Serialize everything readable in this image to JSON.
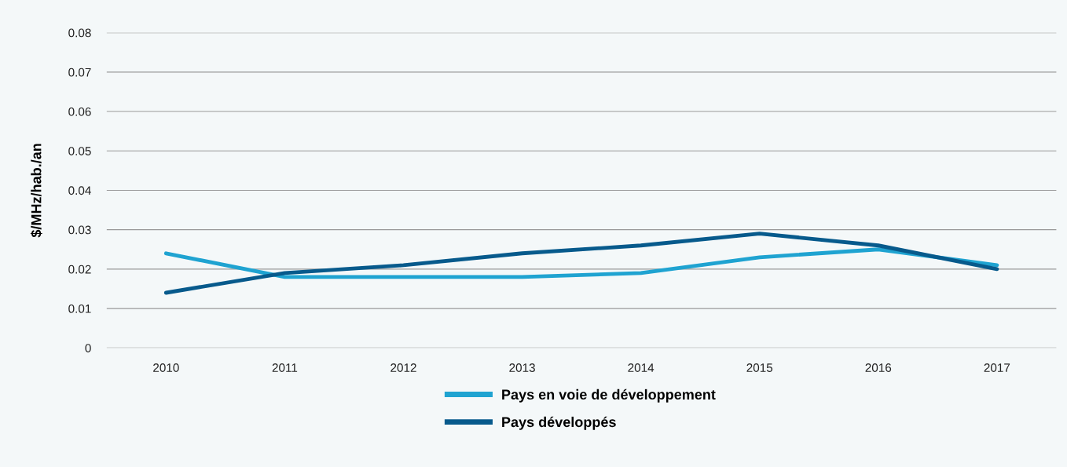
{
  "chart_data": {
    "type": "line",
    "ylabel": "$/MHz/hab./an",
    "categories": [
      "2010",
      "2011",
      "2012",
      "2013",
      "2014",
      "2015",
      "2016",
      "2017"
    ],
    "series": [
      {
        "name": "Pays en voie de développement",
        "color": "#1fa3d1",
        "values": [
          0.024,
          0.018,
          0.018,
          0.018,
          0.019,
          0.023,
          0.025,
          0.021
        ]
      },
      {
        "name": "Pays développés",
        "color": "#075a8c",
        "values": [
          0.014,
          0.019,
          0.021,
          0.024,
          0.026,
          0.029,
          0.026,
          0.02
        ]
      }
    ],
    "ylim": [
      0,
      0.08
    ],
    "yticks": [
      0,
      0.01,
      0.02,
      0.03,
      0.04,
      0.05,
      0.06,
      0.07,
      0.08
    ],
    "grid": "y",
    "legend": "bottom",
    "marker": "none",
    "line_style": "solid"
  }
}
